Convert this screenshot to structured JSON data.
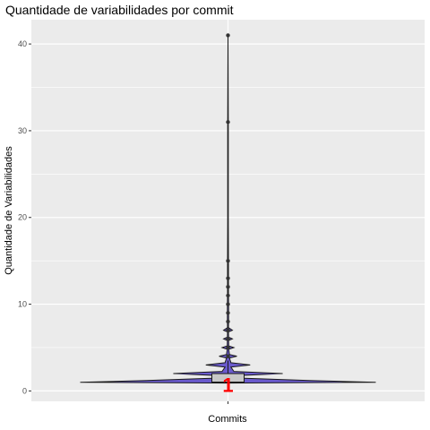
{
  "chart_data": {
    "type": "violin",
    "title": "Quantidade de variabilidades por commit",
    "xlabel": "Commits",
    "ylabel": "Quantidade de Variabilidades",
    "ylim": [
      -1.2,
      42.8
    ],
    "yticks": [
      0,
      10,
      20,
      30,
      40
    ],
    "grid": true,
    "colors": {
      "panel": "#ebebeb",
      "grid": "#ffffff",
      "violin_fill": "#6a5acd",
      "violin_stroke": "#1a1a1a",
      "box_fill": "#c8c8c8",
      "median_label": "#ff0000",
      "points": "#333333"
    },
    "density": [
      {
        "y": 0.9,
        "w": 0
      },
      {
        "y": 1.0,
        "w": 1.0
      },
      {
        "y": 1.2,
        "w": 0.55
      },
      {
        "y": 1.5,
        "w": 0.05
      },
      {
        "y": 1.75,
        "w": 0.04
      },
      {
        "y": 2.0,
        "w": 0.37
      },
      {
        "y": 2.25,
        "w": 0.04
      },
      {
        "y": 2.75,
        "w": 0.02
      },
      {
        "y": 3.0,
        "w": 0.15
      },
      {
        "y": 3.25,
        "w": 0.02
      },
      {
        "y": 3.8,
        "w": 0.01
      },
      {
        "y": 4.0,
        "w": 0.06
      },
      {
        "y": 4.2,
        "w": 0.01
      },
      {
        "y": 4.8,
        "w": 0.005
      },
      {
        "y": 5.0,
        "w": 0.04
      },
      {
        "y": 5.2,
        "w": 0.005
      },
      {
        "y": 5.8,
        "w": 0.004
      },
      {
        "y": 6.0,
        "w": 0.03
      },
      {
        "y": 6.2,
        "w": 0.004
      },
      {
        "y": 6.8,
        "w": 0.003
      },
      {
        "y": 7.0,
        "w": 0.03
      },
      {
        "y": 7.3,
        "w": 0.003
      },
      {
        "y": 8.0,
        "w": 0.004
      },
      {
        "y": 9.0,
        "w": 0.004
      },
      {
        "y": 10.0,
        "w": 0.004
      },
      {
        "y": 11.0,
        "w": 0.003
      },
      {
        "y": 12.0,
        "w": 0.003
      },
      {
        "y": 13.0,
        "w": 0.003
      },
      {
        "y": 15.0,
        "w": 0.003
      },
      {
        "y": 20.0,
        "w": 0.002
      },
      {
        "y": 31.0,
        "w": 0.002
      },
      {
        "y": 41.0,
        "w": 0
      }
    ],
    "box": {
      "q1": 1,
      "median": 1,
      "q3": 2,
      "whisker_low": 1,
      "whisker_high": 3.5
    },
    "outliers": [
      4,
      5,
      6,
      7,
      8,
      9,
      10,
      11,
      12,
      13,
      15,
      31,
      41
    ],
    "median_label": "1"
  }
}
